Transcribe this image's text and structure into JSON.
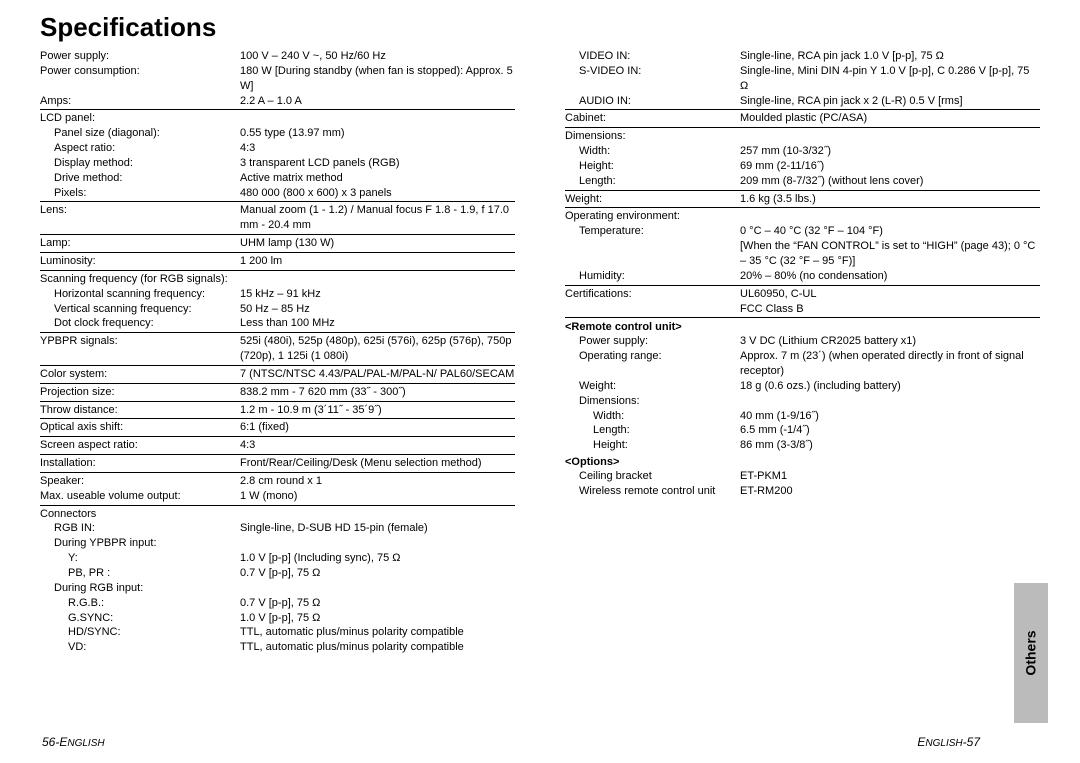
{
  "title": "Specifications",
  "left": {
    "rows": [
      {
        "indent": 0,
        "label": "Power supply:",
        "value": "100 V – 240 V ~, 50 Hz/60 Hz"
      },
      {
        "indent": 0,
        "label": "Power consumption:",
        "value": "180 W [During standby (when fan is stopped): Approx. 5 W]"
      },
      {
        "indent": 0,
        "label": "Amps:",
        "value": "2.2 A – 1.0 A",
        "rule": true
      },
      {
        "indent": 0,
        "label": "LCD panel:",
        "value": ""
      },
      {
        "indent": 1,
        "label": "Panel size (diagonal):",
        "value": "0.55 type (13.97 mm)"
      },
      {
        "indent": 1,
        "label": "Aspect ratio:",
        "value": "4:3"
      },
      {
        "indent": 1,
        "label": "Display method:",
        "value": "3 transparent LCD panels (RGB)"
      },
      {
        "indent": 1,
        "label": "Drive method:",
        "value": "Active matrix method"
      },
      {
        "indent": 1,
        "label": "Pixels:",
        "value": "480 000 (800 x 600) x 3 panels",
        "rule": true
      },
      {
        "indent": 0,
        "label": "Lens:",
        "value": "Manual zoom (1 - 1.2) / Manual focus F 1.8 - 1.9, f 17.0 mm - 20.4 mm",
        "rule": true
      },
      {
        "indent": 0,
        "label": "Lamp:",
        "value": "UHM lamp (130 W)",
        "rule": true
      },
      {
        "indent": 0,
        "label": "Luminosity:",
        "value": "1 200 lm",
        "rule": true
      },
      {
        "indent": 0,
        "label": "Scanning frequency (for RGB signals):",
        "value": ""
      },
      {
        "indent": 1,
        "label": "Horizontal scanning frequency:",
        "value": "15 kHz – 91 kHz"
      },
      {
        "indent": 1,
        "label": "Vertical scanning frequency:",
        "value": "50 Hz – 85 Hz"
      },
      {
        "indent": 1,
        "label": "Dot clock frequency:",
        "value": "Less than 100 MHz",
        "rule": true
      },
      {
        "indent": 0,
        "label": "YPBPR signals:",
        "value": "525i (480i), 525p (480p), 625i (576i), 625p (576p), 750p (720p), 1 125i (1 080i)",
        "rule": true
      },
      {
        "indent": 0,
        "label": "Color system:",
        "value": "7 (NTSC/NTSC 4.43/PAL/PAL-M/PAL-N/ PAL60/SECAM",
        "rule": true
      },
      {
        "indent": 0,
        "label": "Projection size:",
        "value": "838.2 mm - 7 620 mm (33˝ - 300˝)",
        "rule": true
      },
      {
        "indent": 0,
        "label": "Throw distance:",
        "value": "1.2 m - 10.9 m (3´11˝ - 35´9˝)",
        "rule": true
      },
      {
        "indent": 0,
        "label": "Optical axis shift:",
        "value": "6:1 (fixed)",
        "rule": true
      },
      {
        "indent": 0,
        "label": "Screen aspect ratio:",
        "value": "4:3",
        "rule": true
      },
      {
        "indent": 0,
        "label": "Installation:",
        "value": "Front/Rear/Ceiling/Desk (Menu selection method)",
        "rule": true
      },
      {
        "indent": 0,
        "label": "Speaker:",
        "value": "2.8 cm round x 1"
      },
      {
        "indent": 0,
        "label": "Max. useable volume output:",
        "value": "1 W (mono)",
        "rule": true
      },
      {
        "indent": 0,
        "label": "Connectors",
        "value": ""
      },
      {
        "indent": 1,
        "label": "RGB IN:",
        "value": "Single-line, D-SUB HD 15-pin (female)"
      },
      {
        "indent": 1,
        "label": "During YPBPR input:",
        "value": ""
      },
      {
        "indent": 2,
        "label": "Y:",
        "value": "1.0 V [p-p] (Including sync), 75 Ω"
      },
      {
        "indent": 2,
        "label": "PB, PR :",
        "value": "0.7 V [p-p], 75 Ω"
      },
      {
        "indent": 1,
        "label": "During RGB input:",
        "value": ""
      },
      {
        "indent": 2,
        "label": "R.G.B.:",
        "value": "0.7 V [p-p], 75 Ω"
      },
      {
        "indent": 2,
        "label": "G.SYNC:",
        "value": "1.0 V [p-p], 75 Ω"
      },
      {
        "indent": 2,
        "label": "HD/SYNC:",
        "value": "TTL, automatic plus/minus polarity compatible"
      },
      {
        "indent": 2,
        "label": "VD:",
        "value": "TTL, automatic plus/minus polarity compatible"
      }
    ]
  },
  "right": {
    "rows": [
      {
        "indent": 1,
        "label": "VIDEO IN:",
        "value": "Single-line, RCA pin jack 1.0 V [p-p], 75 Ω"
      },
      {
        "indent": 1,
        "label": "S-VIDEO IN:",
        "value": "Single-line, Mini DIN 4-pin Y 1.0 V [p-p], C 0.286 V [p-p], 75 Ω"
      },
      {
        "indent": 1,
        "label": "AUDIO IN:",
        "value": "Single-line, RCA pin jack x 2 (L-R) 0.5 V [rms]",
        "rule": true
      },
      {
        "indent": 0,
        "label": "Cabinet:",
        "value": "Moulded plastic (PC/ASA)",
        "rule": true
      },
      {
        "indent": 0,
        "label": "Dimensions:",
        "value": ""
      },
      {
        "indent": 1,
        "label": "Width:",
        "value": "257 mm (10-3/32˝)"
      },
      {
        "indent": 1,
        "label": "Height:",
        "value": "69 mm (2-11/16˝)"
      },
      {
        "indent": 1,
        "label": "Length:",
        "value": "209 mm (8-7/32˝) (without lens cover)",
        "rule": true
      },
      {
        "indent": 0,
        "label": "Weight:",
        "value": "1.6 kg (3.5 lbs.)",
        "rule": true
      },
      {
        "indent": 0,
        "label": "Operating environment:",
        "value": ""
      },
      {
        "indent": 1,
        "label": "Temperature:",
        "value": "0 °C – 40 °C (32 °F – 104 °F)\n[When the “FAN CONTROL” is set to “HIGH” (page 43); 0 °C – 35 °C (32 °F – 95 °F)]"
      },
      {
        "indent": 1,
        "label": "Humidity:",
        "value": "20% – 80% (no condensation)",
        "rule": true
      },
      {
        "indent": 0,
        "label": "Certifications:",
        "value": "UL60950, C-UL\nFCC Class B",
        "rule": true
      }
    ],
    "remote_header": "<Remote control unit>",
    "remote": [
      {
        "indent": 1,
        "label": "Power supply:",
        "value": "3 V DC (Lithium CR2025 battery x1)"
      },
      {
        "indent": 1,
        "label": "Operating range:",
        "value": "Approx. 7 m (23´) (when operated directly in front of signal receptor)"
      },
      {
        "indent": 1,
        "label": "Weight:",
        "value": "18 g (0.6 ozs.) (including battery)"
      },
      {
        "indent": 1,
        "label": "Dimensions:",
        "value": ""
      },
      {
        "indent": 2,
        "label": "Width:",
        "value": "40 mm (1-9/16˝)"
      },
      {
        "indent": 2,
        "label": "Length:",
        "value": "6.5 mm (-1/4˝)"
      },
      {
        "indent": 2,
        "label": "Height:",
        "value": "86 mm (3-3/8˝)"
      }
    ],
    "options_header": "<Options>",
    "options": [
      {
        "indent": 1,
        "label": "Ceiling bracket",
        "value": "ET-PKM1"
      },
      {
        "indent": 1,
        "label": "Wireless remote control unit",
        "value": "ET-RM200"
      }
    ]
  },
  "footer_left": "56-ENGLISH",
  "footer_right": "ENGLISH-57",
  "side_tab": "Others"
}
